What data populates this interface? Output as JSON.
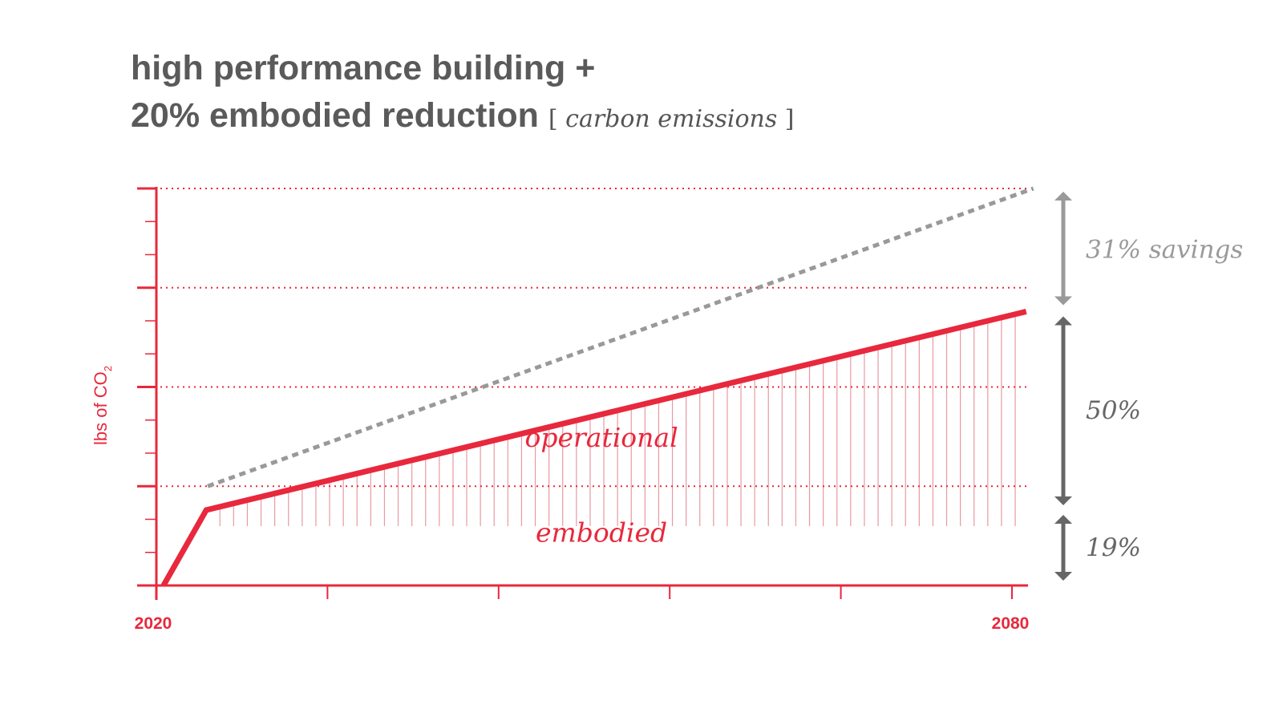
{
  "chart_data": {
    "type": "line",
    "title_line1": "high performance building +",
    "title_line2": "20% embodied reduction",
    "subtitle": "carbon emissions",
    "xlabel": "",
    "ylabel": "lbs of CO",
    "ylabel_subscript": "2",
    "xlim": [
      2020,
      2080
    ],
    "ylim": [
      0,
      100
    ],
    "x_tick_labels": [
      "2020",
      "2080"
    ],
    "x_ticks": [
      2020,
      2032,
      2044,
      2056,
      2068,
      2080
    ],
    "y_gridlines": [
      25,
      50,
      75,
      100
    ],
    "grid": true,
    "series": [
      {
        "style": "solid",
        "color": "#e8283c",
        "points": [
          [
            2020.5,
            0
          ],
          [
            2023.5,
            19
          ],
          [
            2081,
            69
          ]
        ]
      },
      {
        "style": "dashed",
        "color": "#999999",
        "points": [
          [
            2023.6,
            25
          ],
          [
            2081.5,
            100
          ]
        ]
      }
    ],
    "region_labels": [
      {
        "text": "operational",
        "x": 2052,
        "y": 37
      },
      {
        "text": "embodied",
        "x": 2052,
        "y": 13
      }
    ],
    "annotations": [
      {
        "text": "31% savings",
        "from": 69,
        "to": 100,
        "color": "#9a9a9a"
      },
      {
        "text": "50%",
        "from": 19,
        "to": 69,
        "color": "#666666"
      },
      {
        "text": "19%",
        "from": 0,
        "to": 19,
        "color": "#666666"
      }
    ],
    "colors": {
      "accent": "#e8283c",
      "hatch": "#e89aa2",
      "title": "#5a5a5a"
    }
  }
}
